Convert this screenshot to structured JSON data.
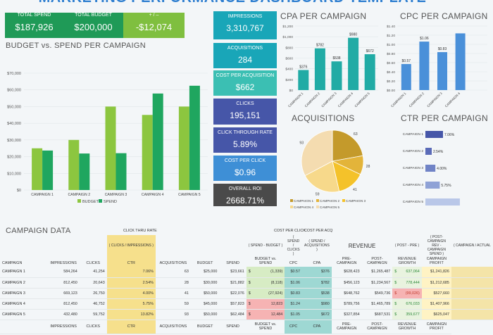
{
  "title": "MARKETING PERFORMANCE DASHBOARD TEMPLATE",
  "summary": [
    {
      "label": "TOTAL SPEND",
      "value": "$187,926",
      "color": "#1f9a57"
    },
    {
      "label": "TOTAL BUDGET",
      "value": "$200,000",
      "color": "#1f9a57"
    },
    {
      "label": "+ / –",
      "value": "-$12,074",
      "color": "#7fbf3f"
    }
  ],
  "tiles": [
    {
      "label": "IMPRESSIONS",
      "value": "3,310,767",
      "color": "#19a6b8"
    },
    {
      "label": "ACQUISITIONS",
      "value": "284",
      "color": "#19a6b8"
    },
    {
      "label": "COST PER ACQUISITION",
      "value": "$662",
      "color": "#3bbfb3"
    },
    {
      "label": "CLICKS",
      "value": "195,151",
      "color": "#4656a8"
    },
    {
      "label": "CLICK THROUGH RATE",
      "value": "5.89%",
      "color": "#4656a8"
    },
    {
      "label": "COST PER CLICK",
      "value": "$0.96",
      "color": "#3e8fd6"
    },
    {
      "label": "OVERALL ROI",
      "value": "2668.71%",
      "color": "#4a4a4a"
    }
  ],
  "sections": {
    "budget": "BUDGET vs. SPEND PER CAMPAIGN",
    "cpa": "CPA PER CAMPAIGN",
    "cpc": "CPC PER CAMPAIGN",
    "acq": "ACQUISITIONS",
    "ctr": "CTR PER CAMPAIGN",
    "data": "CAMPAIGN DATA"
  },
  "chart_data": [
    {
      "type": "bar",
      "title": "BUDGET vs. SPEND PER CAMPAIGN",
      "categories": [
        "CAMPAIGN 1",
        "CAMPAIGN 2",
        "CAMPAIGN 3",
        "CAMPAIGN 4",
        "CAMPAIGN 5"
      ],
      "series": [
        {
          "name": "BUDGET",
          "values": [
            25000,
            30000,
            50000,
            45000,
            50000
          ],
          "color": "#8cc63f"
        },
        {
          "name": "SPEND",
          "values": [
            23661,
            21882,
            22076,
            57823,
            62484
          ],
          "color": "#1fa65f"
        }
      ],
      "ylim": [
        0,
        70000
      ],
      "ticks": [
        "$0",
        "$10,000",
        "$20,000",
        "$30,000",
        "$40,000",
        "$50,000",
        "$60,000",
        "$70,000"
      ]
    },
    {
      "type": "bar",
      "title": "CPA PER CAMPAIGN",
      "categories": [
        "CAMPAIGN 1",
        "CAMPAIGN 2",
        "CAMPAIGN 3",
        "CAMPAIGN 4",
        "CAMPAIGN 5"
      ],
      "values": [
        376,
        782,
        538,
        980,
        672
      ],
      "labels": [
        "$376",
        "$782",
        "$538",
        "$980",
        "$672"
      ],
      "ylim": [
        0,
        1200
      ],
      "ticks": [
        "$0",
        "$200",
        "$400",
        "$600",
        "$800",
        "$1,000",
        "$1,200"
      ],
      "color": "#21aba5"
    },
    {
      "type": "bar",
      "title": "CPC PER CAMPAIGN",
      "categories": [
        "CAMPAIGN 1",
        "CAMPAIGN 2",
        "CAMPAIGN 3",
        "CAMPAIGN 4"
      ],
      "values": [
        0.57,
        1.06,
        0.83,
        1.24
      ],
      "labels": [
        "$0.57",
        "$1.06",
        "$0.83",
        ""
      ],
      "ylim": [
        0,
        1.4
      ],
      "ticks": [
        "$0.00",
        "$0.20",
        "$0.40",
        "$0.60",
        "$0.80",
        "$1.00",
        "$1.20",
        "$1.40"
      ],
      "color": "#4a90d9"
    },
    {
      "type": "pie",
      "title": "ACQUISITIONS",
      "categories": [
        "CAMPAIGN 1",
        "CAMPAIGN 2",
        "CAMPAIGN 3",
        "CAMPAIGN 4",
        "CAMPAIGN 5"
      ],
      "values": [
        63,
        28,
        41,
        59,
        93
      ],
      "colors": [
        "#c49a2b",
        "#e3b43a",
        "#f4c22a",
        "#f7d98b",
        "#f4dcb0"
      ]
    },
    {
      "type": "bar",
      "title": "CTR PER CAMPAIGN",
      "categories": [
        "CAMPAIGN 1",
        "CAMPAIGN 2",
        "CAMPAIGN 3",
        "CAMPAIGN 4",
        "CAMPAIGN 5"
      ],
      "values": [
        7.06,
        2.54,
        4.0,
        5.75,
        13.82
      ],
      "labels": [
        "7.06%",
        "2.54%",
        "4.00%",
        "5.75%",
        ""
      ],
      "colors": [
        "#4656a8",
        "#5b6bb8",
        "#7083c6",
        "#8fa2d6",
        "#b9c7e8"
      ]
    }
  ],
  "table": {
    "top_labels": {
      "ctr": "CLICK THRU RATE",
      "cpc": "COST PER CLICK",
      "cpa": "COST PER ACQ",
      "revenue": "REVENUE"
    },
    "formulas": {
      "ctr": "( CLICKS / IMPRESSIONS )",
      "bvs": "( SPEND - BUDGET )",
      "cpc": "( SPEND / CLICKS )",
      "cpa": "( SPEND / ACQUISITIONS )",
      "rg": "( POST - PRE )",
      "cp": "( POST-CAMPAIGN REV - CAMPAIGN SPEND )",
      "last": "( CAMPAIGN / ACTUAL"
    },
    "headers": [
      "CAMPAIGN",
      "IMPRESSIONS",
      "CLICKS",
      "CTR",
      "ACQUISITIONS",
      "BUDGET",
      "SPEND",
      "BUDGET vs. SPEND",
      "CPC",
      "CPA",
      "PRE-CAMPAIGN",
      "POST-CAMPAIGN",
      "REVENUE GROWTH",
      "CAMPAIGN PROFIT",
      ""
    ],
    "rows": [
      [
        "CAMPAIGN 1",
        "584,264",
        "41,254",
        "7.06%",
        "63",
        "$25,000",
        "$23,661",
        "$",
        "(1,339)",
        "$0.57",
        "$376",
        "$628,423",
        "$1,265,487",
        "$",
        "637,064",
        "$1,241,826"
      ],
      [
        "CAMPAIGN 2",
        "812,450",
        "20,643",
        "2.54%",
        "28",
        "$30,000",
        "$21,882",
        "$",
        "(8,118)",
        "$1.06",
        "$782",
        "$456,123",
        "$1,234,567",
        "$",
        "778,444",
        "$1,212,685"
      ],
      [
        "CAMPAIGN 3",
        "669,123",
        "26,750",
        "4.00%",
        "41",
        "$50,000",
        "$22,076",
        "$",
        "(27,924)",
        "$0.83",
        "$538",
        "$648,762",
        "$549,736",
        "$",
        "(99,026)",
        "$527,660"
      ],
      [
        "CAMPAIGN 4",
        "812,450",
        "46,752",
        "5.75%",
        "59",
        "$45,000",
        "$57,823",
        "$",
        "12,823",
        "$1.24",
        "$980",
        "$789,756",
        "$1,465,789",
        "$",
        "676,033",
        "$1,407,966"
      ],
      [
        "CAMPAIGN 5",
        "432,480",
        "59,752",
        "13.82%",
        "93",
        "$50,000",
        "$62,484",
        "$",
        "12,484",
        "$1.05",
        "$672",
        "$327,854",
        "$687,531",
        "$",
        "359,677",
        "$625,047"
      ]
    ],
    "footer": [
      "IMPRESSIONS",
      "CLICKS",
      "CTR",
      "ACQUISITIONS",
      "BUDGET",
      "SPEND",
      "BUDGET vs. SPEND",
      "CPC",
      "CPA",
      "PRE-CAMPAIGN",
      "POST-CAMPAIGN",
      "REVENUE GROWTH",
      "CAMPAIGN PROFIT"
    ]
  }
}
